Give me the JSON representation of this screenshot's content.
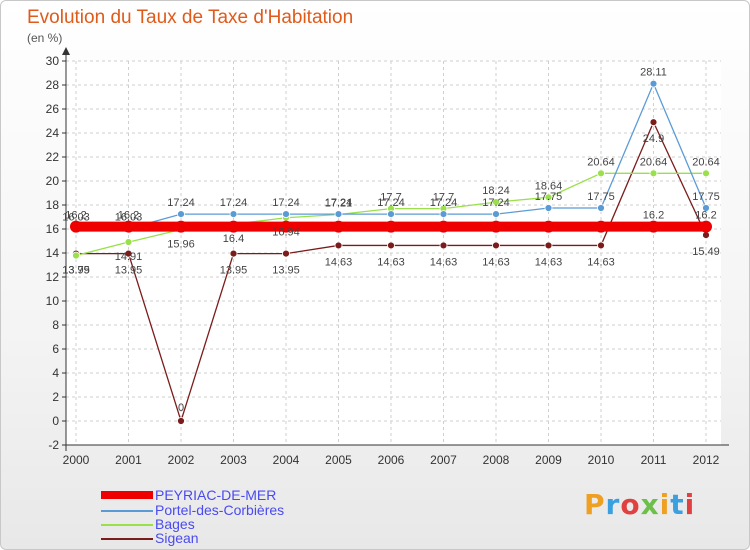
{
  "title": "Evolution du Taux de Taxe d'Habitation",
  "unit_label": "(en %)",
  "brand": "Proxiti",
  "chart_data": {
    "type": "line",
    "title": "Evolution du Taux de Taxe d'Habitation",
    "ylabel": "(en %)",
    "xlabel": "",
    "x": [
      "2000",
      "2001",
      "2002",
      "2003",
      "2004",
      "2005",
      "2006",
      "2007",
      "2008",
      "2009",
      "2010",
      "2011",
      "2012"
    ],
    "ylim": [
      -2,
      30
    ],
    "yticks": [
      -2,
      0,
      2,
      4,
      6,
      8,
      10,
      12,
      14,
      16,
      18,
      20,
      22,
      24,
      26,
      28,
      30
    ],
    "grid": true,
    "legend_position": "bottom-left",
    "series": [
      {
        "name": "PEYRIAC-DE-MER",
        "color": "#ee0000",
        "values": [
          16.2,
          16.2,
          16.2,
          16.2,
          16.2,
          16.2,
          16.2,
          16.2,
          16.2,
          16.2,
          16.2,
          16.2,
          16.2
        ],
        "labels": [
          "16.2",
          "16.2",
          "",
          "",
          "",
          "",
          "",
          "",
          "",
          "",
          "",
          "16.2",
          "16.2"
        ]
      },
      {
        "name": "Portel-des-Corbières",
        "color": "#5b9bd5",
        "values": [
          16.03,
          16.03,
          17.24,
          17.24,
          17.24,
          17.24,
          17.24,
          17.24,
          17.24,
          17.75,
          17.75,
          28.11,
          17.75
        ],
        "labels": [
          "16.03",
          "16.03",
          "17.24",
          "17.24",
          "17.24",
          "17.24",
          "17.24",
          "17.24",
          "17.24",
          "17.75",
          "17.75",
          "28.11",
          "17.75"
        ]
      },
      {
        "name": "Bages",
        "color": "#99e04a",
        "values": [
          13.79,
          14.91,
          15.96,
          16.4,
          16.94,
          17.21,
          17.7,
          17.7,
          18.24,
          18.64,
          20.64,
          20.64,
          20.64
        ],
        "labels": [
          "13.79",
          "14.91",
          "15.96",
          "16.4",
          "16.94",
          "17.21",
          "17.7",
          "17.7",
          "18.24",
          "18.64",
          "20.64",
          "20.64",
          "20.64"
        ]
      },
      {
        "name": "Sigean",
        "color": "#7b1c1c",
        "values": [
          13.95,
          13.95,
          0,
          13.95,
          13.95,
          14.63,
          14.63,
          14.63,
          14.63,
          14.63,
          14.63,
          24.9,
          15.49
        ],
        "labels": [
          "13.95",
          "13.95",
          "0",
          "13.95",
          "13.95",
          "14.63",
          "14.63",
          "14.63",
          "14.63",
          "14.63",
          "14.63",
          "24.9",
          "15.49"
        ]
      }
    ]
  }
}
